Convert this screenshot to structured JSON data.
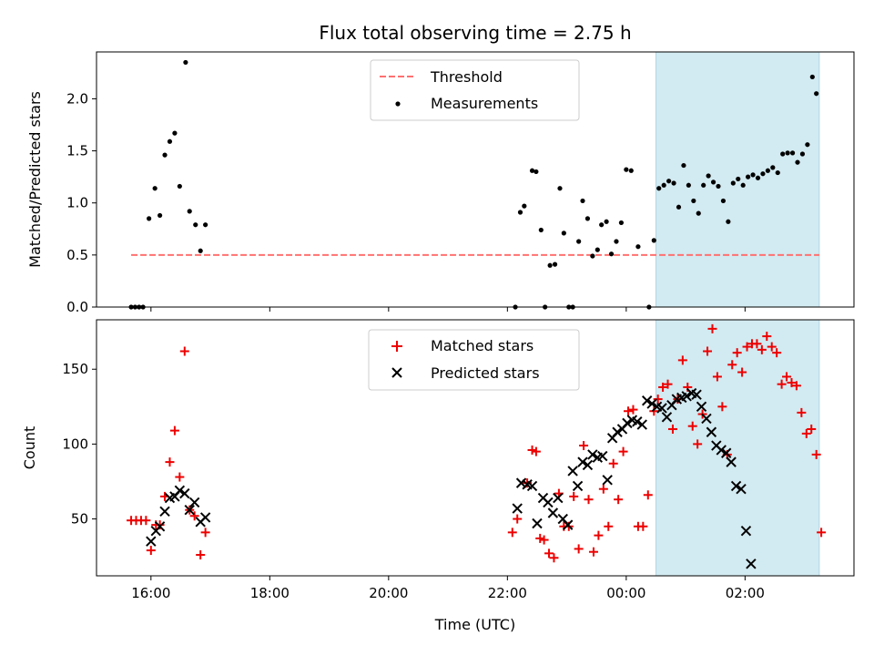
{
  "title": "Flux total observing time = 2.75 h",
  "xlabel": "Time (UTC)",
  "colors": {
    "threshold": "#ff7070",
    "measurements": "#000000",
    "matched": "#ee0000",
    "predicted": "#000000",
    "shade": "#add8e6"
  },
  "chart_data": [
    {
      "type": "scatter",
      "panel": "top",
      "ylabel": "Matched/Predicted stars",
      "xlim": [
        "15:05",
        "03:50"
      ],
      "ylim": [
        0,
        2.45
      ],
      "xticks": [
        "16:00",
        "18:00",
        "20:00",
        "22:00",
        "00:00",
        "02:00"
      ],
      "yticks": [
        "0.0",
        "0.5",
        "1.0",
        "1.5",
        "2.0"
      ],
      "shaded_span": [
        "00:30",
        "03:15"
      ],
      "threshold": {
        "name": "Threshold",
        "value": 0.5,
        "x_range": [
          "15:40",
          "03:15"
        ],
        "style": "dashed"
      },
      "legend": {
        "loc": "upper center",
        "labels": [
          "Threshold",
          "Measurements"
        ]
      },
      "series": [
        {
          "name": "Measurements",
          "marker": "dot",
          "points": [
            [
              "15:40",
              0
            ],
            [
              "15:44",
              0
            ],
            [
              "15:48",
              0
            ],
            [
              "15:52",
              0
            ],
            [
              "15:58",
              0.85
            ],
            [
              "16:04",
              1.14
            ],
            [
              "16:09",
              0.88
            ],
            [
              "16:14",
              1.46
            ],
            [
              "16:19",
              1.59
            ],
            [
              "16:24",
              1.67
            ],
            [
              "16:29",
              1.16
            ],
            [
              "16:35",
              2.35
            ],
            [
              "16:39",
              0.92
            ],
            [
              "16:45",
              0.79
            ],
            [
              "16:50",
              0.54
            ],
            [
              "16:55",
              0.79
            ],
            [
              "22:08",
              0
            ],
            [
              "22:13",
              0.91
            ],
            [
              "22:17",
              0.97
            ],
            [
              "22:25",
              1.31
            ],
            [
              "22:29",
              1.3
            ],
            [
              "22:34",
              0.74
            ],
            [
              "22:38",
              0
            ],
            [
              "22:43",
              0.4
            ],
            [
              "22:48",
              0.41
            ],
            [
              "22:53",
              1.14
            ],
            [
              "22:57",
              0.71
            ],
            [
              "23:02",
              0
            ],
            [
              "23:06",
              0
            ],
            [
              "23:12",
              0.63
            ],
            [
              "23:16",
              1.02
            ],
            [
              "23:21",
              0.85
            ],
            [
              "23:26",
              0.49
            ],
            [
              "23:31",
              0.55
            ],
            [
              "23:35",
              0.79
            ],
            [
              "23:40",
              0.82
            ],
            [
              "23:45",
              0.51
            ],
            [
              "23:50",
              0.63
            ],
            [
              "23:55",
              0.81
            ],
            [
              "24:00",
              1.32
            ],
            [
              "24:05",
              1.31
            ],
            [
              "24:12",
              0.58
            ],
            [
              "24:23",
              0
            ],
            [
              "24:28",
              0.64
            ],
            [
              "24:33",
              1.14
            ],
            [
              "24:38",
              1.17
            ],
            [
              "24:43",
              1.21
            ],
            [
              "24:48",
              1.19
            ],
            [
              "24:53",
              0.96
            ],
            [
              "24:58",
              1.36
            ],
            [
              "25:03",
              1.17
            ],
            [
              "25:08",
              1.02
            ],
            [
              "25:13",
              0.9
            ],
            [
              "25:18",
              1.17
            ],
            [
              "25:23",
              1.26
            ],
            [
              "25:28",
              1.2
            ],
            [
              "25:33",
              1.16
            ],
            [
              "25:38",
              1.02
            ],
            [
              "25:43",
              0.82
            ],
            [
              "25:48",
              1.19
            ],
            [
              "25:53",
              1.23
            ],
            [
              "25:58",
              1.17
            ],
            [
              "26:03",
              1.25
            ],
            [
              "26:08",
              1.27
            ],
            [
              "26:13",
              1.24
            ],
            [
              "26:18",
              1.28
            ],
            [
              "26:23",
              1.31
            ],
            [
              "26:28",
              1.34
            ],
            [
              "26:33",
              1.29
            ],
            [
              "26:38",
              1.47
            ],
            [
              "26:43",
              1.48
            ],
            [
              "26:48",
              1.48
            ],
            [
              "26:53",
              1.39
            ],
            [
              "26:58",
              1.47
            ],
            [
              "27:03",
              1.56
            ],
            [
              "27:08",
              2.21
            ],
            [
              "27:12",
              2.05
            ]
          ]
        }
      ]
    },
    {
      "type": "scatter",
      "panel": "bottom",
      "ylabel": "Count",
      "xlim": [
        "15:05",
        "03:50"
      ],
      "ylim": [
        12,
        183
      ],
      "xticks": [
        "16:00",
        "18:00",
        "20:00",
        "22:00",
        "00:00",
        "02:00"
      ],
      "yticks": [
        "50",
        "100",
        "150"
      ],
      "shaded_span": [
        "00:30",
        "03:15"
      ],
      "legend": {
        "loc": "upper center",
        "labels": [
          "Matched stars",
          "Predicted stars"
        ]
      },
      "series": [
        {
          "name": "Matched stars",
          "marker": "plus",
          "points": [
            [
              "15:40",
              49
            ],
            [
              "15:45",
              49
            ],
            [
              "15:50",
              49
            ],
            [
              "15:55",
              49
            ],
            [
              "16:00",
              29
            ],
            [
              "16:05",
              46
            ],
            [
              "16:09",
              46
            ],
            [
              "16:14",
              65
            ],
            [
              "16:19",
              88
            ],
            [
              "16:24",
              109
            ],
            [
              "16:29",
              78
            ],
            [
              "16:34",
              162
            ],
            [
              "16:39",
              56
            ],
            [
              "16:44",
              52
            ],
            [
              "16:50",
              26
            ],
            [
              "16:55",
              41
            ],
            [
              "22:05",
              41
            ],
            [
              "22:10",
              50
            ],
            [
              "22:20",
              74
            ],
            [
              "22:25",
              96
            ],
            [
              "22:29",
              95
            ],
            [
              "22:33",
              37
            ],
            [
              "22:37",
              36
            ],
            [
              "22:42",
              27
            ],
            [
              "22:47",
              24
            ],
            [
              "22:52",
              67
            ],
            [
              "22:57",
              45
            ],
            [
              "23:02",
              45
            ],
            [
              "23:07",
              65
            ],
            [
              "23:12",
              30
            ],
            [
              "23:17",
              99
            ],
            [
              "23:22",
              63
            ],
            [
              "23:27",
              28
            ],
            [
              "23:32",
              39
            ],
            [
              "23:37",
              70
            ],
            [
              "23:42",
              45
            ],
            [
              "23:47",
              87
            ],
            [
              "23:52",
              63
            ],
            [
              "23:57",
              95
            ],
            [
              "24:02",
              122
            ],
            [
              "24:07",
              123
            ],
            [
              "24:12",
              45
            ],
            [
              "24:17",
              45
            ],
            [
              "24:22",
              66
            ],
            [
              "24:28",
              122
            ],
            [
              "24:32",
              130
            ],
            [
              "24:37",
              138
            ],
            [
              "24:42",
              140
            ],
            [
              "24:47",
              110
            ],
            [
              "24:52",
              130
            ],
            [
              "24:57",
              156
            ],
            [
              "25:02",
              138
            ],
            [
              "25:07",
              112
            ],
            [
              "25:12",
              100
            ],
            [
              "25:17",
              120
            ],
            [
              "25:22",
              162
            ],
            [
              "25:27",
              177
            ],
            [
              "25:32",
              145
            ],
            [
              "25:37",
              125
            ],
            [
              "25:42",
              93
            ],
            [
              "25:47",
              153
            ],
            [
              "25:52",
              161
            ],
            [
              "25:57",
              148
            ],
            [
              "26:02",
              165
            ],
            [
              "26:07",
              167
            ],
            [
              "26:12",
              167
            ],
            [
              "26:17",
              163
            ],
            [
              "26:22",
              172
            ],
            [
              "26:27",
              165
            ],
            [
              "26:32",
              161
            ],
            [
              "26:37",
              140
            ],
            [
              "26:42",
              145
            ],
            [
              "26:47",
              141
            ],
            [
              "26:52",
              139
            ],
            [
              "26:57",
              121
            ],
            [
              "27:02",
              107
            ],
            [
              "27:07",
              110
            ],
            [
              "27:12",
              93
            ],
            [
              "27:17",
              41
            ]
          ]
        },
        {
          "name": "Predicted stars",
          "marker": "x",
          "points": [
            [
              "16:00",
              35
            ],
            [
              "16:05",
              42
            ],
            [
              "16:09",
              45
            ],
            [
              "16:14",
              55
            ],
            [
              "16:19",
              64
            ],
            [
              "16:24",
              65
            ],
            [
              "16:29",
              69
            ],
            [
              "16:34",
              67
            ],
            [
              "16:39",
              56
            ],
            [
              "16:44",
              61
            ],
            [
              "16:50",
              48
            ],
            [
              "16:55",
              51
            ],
            [
              "22:10",
              57
            ],
            [
              "22:14",
              74
            ],
            [
              "22:20",
              73
            ],
            [
              "22:25",
              72
            ],
            [
              "22:30",
              47
            ],
            [
              "22:36",
              64
            ],
            [
              "22:41",
              61
            ],
            [
              "22:46",
              54
            ],
            [
              "22:51",
              64
            ],
            [
              "22:56",
              50
            ],
            [
              "23:01",
              46
            ],
            [
              "23:06",
              82
            ],
            [
              "23:11",
              72
            ],
            [
              "23:16",
              88
            ],
            [
              "23:21",
              86
            ],
            [
              "23:26",
              93
            ],
            [
              "23:31",
              91
            ],
            [
              "23:36",
              92
            ],
            [
              "23:41",
              76
            ],
            [
              "23:46",
              104
            ],
            [
              "23:51",
              108
            ],
            [
              "23:56",
              110
            ],
            [
              "24:01",
              114
            ],
            [
              "24:06",
              116
            ],
            [
              "24:11",
              115
            ],
            [
              "24:16",
              113
            ],
            [
              "24:21",
              129
            ],
            [
              "24:26",
              127
            ],
            [
              "24:31",
              125
            ],
            [
              "24:36",
              124
            ],
            [
              "24:41",
              118
            ],
            [
              "24:46",
              126
            ],
            [
              "24:51",
              130
            ],
            [
              "24:56",
              131
            ],
            [
              "25:01",
              132
            ],
            [
              "25:06",
              134
            ],
            [
              "25:11",
              133
            ],
            [
              "25:16",
              125
            ],
            [
              "25:21",
              117
            ],
            [
              "25:26",
              108
            ],
            [
              "25:31",
              99
            ],
            [
              "25:36",
              96
            ],
            [
              "25:41",
              94
            ],
            [
              "25:46",
              88
            ],
            [
              "25:51",
              72
            ],
            [
              "25:56",
              70
            ],
            [
              "26:01",
              42
            ],
            [
              "26:06",
              20
            ]
          ]
        }
      ]
    }
  ]
}
